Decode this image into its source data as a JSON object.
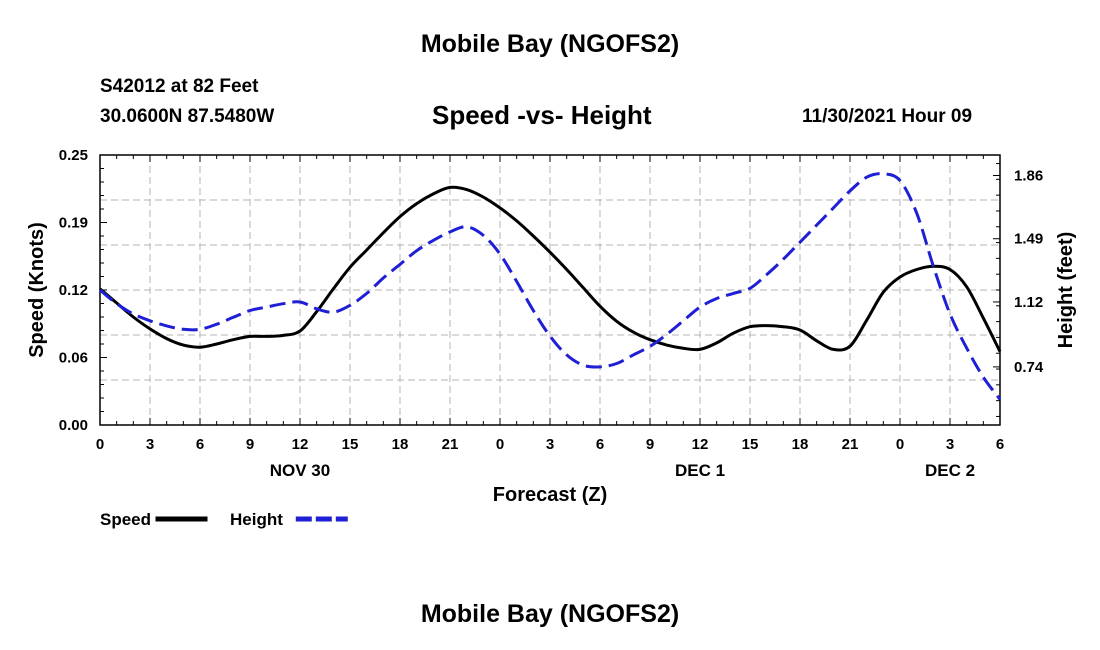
{
  "header": {
    "title": "Mobile Bay (NGOFS2)",
    "station": "S42012 at 82 Feet",
    "coords": "30.0600N  87.5480W",
    "subtitle": "Speed -vs- Height",
    "date": "11/30/2021 Hour 09"
  },
  "footer": {
    "title": "Mobile Bay (NGOFS2)"
  },
  "chart_data": {
    "type": "line",
    "xlabel": "Forecast (Z)",
    "ylabel": "Speed (Knots)",
    "y2label": "Height (feet)",
    "x_range": [
      0,
      54
    ],
    "ylim": [
      0,
      0.25
    ],
    "y2lim": [
      0.4,
      1.98
    ],
    "x_ticks": [
      {
        "x": 0,
        "label": "0"
      },
      {
        "x": 3,
        "label": "3"
      },
      {
        "x": 6,
        "label": "6"
      },
      {
        "x": 9,
        "label": "9"
      },
      {
        "x": 12,
        "label": "12"
      },
      {
        "x": 15,
        "label": "15"
      },
      {
        "x": 18,
        "label": "18"
      },
      {
        "x": 21,
        "label": "21"
      },
      {
        "x": 24,
        "label": "0"
      },
      {
        "x": 27,
        "label": "3"
      },
      {
        "x": 30,
        "label": "6"
      },
      {
        "x": 33,
        "label": "9"
      },
      {
        "x": 36,
        "label": "12"
      },
      {
        "x": 39,
        "label": "15"
      },
      {
        "x": 42,
        "label": "18"
      },
      {
        "x": 45,
        "label": "21"
      },
      {
        "x": 48,
        "label": "0"
      },
      {
        "x": 51,
        "label": "3"
      },
      {
        "x": 54,
        "label": "6"
      }
    ],
    "day_labels": [
      {
        "x": 12,
        "label": "NOV 30"
      },
      {
        "x": 36,
        "label": "DEC 1"
      },
      {
        "x": 51,
        "label": "DEC 2"
      }
    ],
    "y_ticks": [
      {
        "v": 0.0,
        "label": "0.00"
      },
      {
        "v": 0.0625,
        "label": "0.06"
      },
      {
        "v": 0.125,
        "label": "0.12"
      },
      {
        "v": 0.1875,
        "label": "0.19"
      },
      {
        "v": 0.25,
        "label": "0.25"
      }
    ],
    "y2_ticks": [
      {
        "v": 0.74,
        "label": "0.74"
      },
      {
        "v": 1.12,
        "label": "1.12"
      },
      {
        "v": 1.49,
        "label": "1.49"
      },
      {
        "v": 1.86,
        "label": "1.86"
      }
    ],
    "series": [
      {
        "name": "Speed",
        "axis": "left",
        "color": "#000000",
        "dash": false,
        "x": [
          0,
          1,
          2,
          3,
          4,
          5,
          6,
          7,
          8,
          9,
          10,
          11,
          12,
          13,
          14,
          15,
          16,
          17,
          18,
          19,
          20,
          21,
          22,
          23,
          24,
          25,
          26,
          27,
          28,
          29,
          30,
          31,
          32,
          33,
          34,
          35,
          36,
          37,
          38,
          39,
          40,
          41,
          42,
          43,
          44,
          45,
          46,
          47,
          48,
          49,
          50,
          51,
          52,
          53,
          54
        ],
        "values": [
          0.126,
          0.113,
          0.1,
          0.089,
          0.08,
          0.074,
          0.072,
          0.075,
          0.079,
          0.082,
          0.082,
          0.083,
          0.087,
          0.105,
          0.126,
          0.146,
          0.162,
          0.178,
          0.193,
          0.205,
          0.214,
          0.22,
          0.218,
          0.211,
          0.201,
          0.189,
          0.175,
          0.16,
          0.144,
          0.127,
          0.11,
          0.096,
          0.086,
          0.079,
          0.074,
          0.071,
          0.07,
          0.076,
          0.085,
          0.091,
          0.092,
          0.091,
          0.088,
          0.078,
          0.07,
          0.073,
          0.097,
          0.123,
          0.137,
          0.144,
          0.147,
          0.144,
          0.128,
          0.099,
          0.068
        ]
      },
      {
        "name": "Height",
        "axis": "right",
        "color": "#1f1fd6",
        "dash": true,
        "x": [
          0,
          1,
          2,
          3,
          4,
          5,
          6,
          7,
          8,
          9,
          10,
          11,
          12,
          13,
          14,
          15,
          16,
          17,
          18,
          19,
          20,
          21,
          22,
          23,
          24,
          25,
          26,
          27,
          28,
          29,
          30,
          31,
          32,
          33,
          34,
          35,
          36,
          37,
          38,
          39,
          40,
          41,
          42,
          43,
          44,
          45,
          46,
          47,
          48,
          49,
          50,
          51,
          52,
          53,
          54
        ],
        "values": [
          1.19,
          1.11,
          1.05,
          1.01,
          0.98,
          0.96,
          0.96,
          0.99,
          1.03,
          1.07,
          1.09,
          1.11,
          1.12,
          1.08,
          1.06,
          1.1,
          1.17,
          1.26,
          1.34,
          1.42,
          1.48,
          1.53,
          1.56,
          1.51,
          1.4,
          1.24,
          1.07,
          0.92,
          0.81,
          0.75,
          0.74,
          0.76,
          0.81,
          0.86,
          0.93,
          1.01,
          1.09,
          1.14,
          1.17,
          1.2,
          1.28,
          1.37,
          1.47,
          1.57,
          1.67,
          1.77,
          1.85,
          1.87,
          1.83,
          1.64,
          1.33,
          1.05,
          0.85,
          0.68,
          0.55
        ]
      }
    ],
    "legend": [
      {
        "label": "Speed",
        "color": "#000000",
        "dash": false
      },
      {
        "label": "Height",
        "color": "#1f1fd6",
        "dash": true
      }
    ],
    "grid": true
  }
}
